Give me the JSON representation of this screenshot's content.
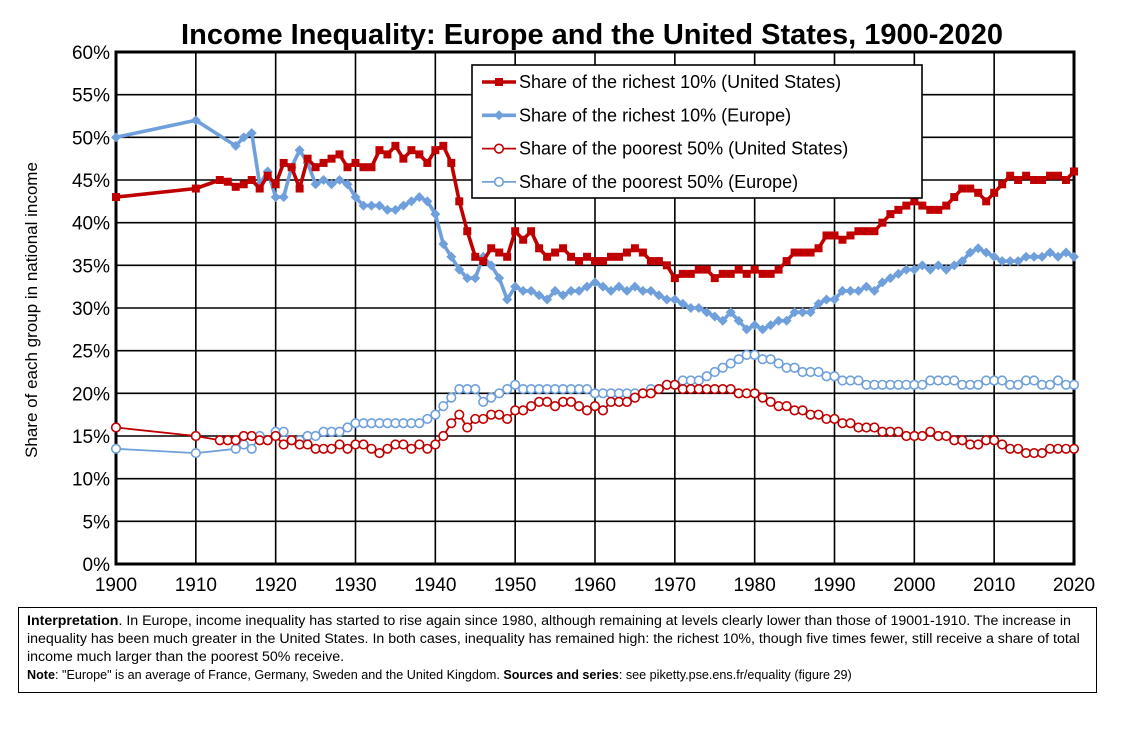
{
  "chart_data": {
    "type": "line",
    "title": "Income Inequality: Europe and the United States, 1900-2020",
    "xlabel": "",
    "ylabel": "Share of each group in national income",
    "xlim": [
      1900,
      2020
    ],
    "ylim": [
      0,
      60
    ],
    "x_ticks": [
      "1900",
      "1910",
      "1920",
      "1930",
      "1940",
      "1950",
      "1960",
      "1970",
      "1980",
      "1990",
      "2000",
      "2010",
      "2020"
    ],
    "y_ticks": [
      "0%",
      "5%",
      "10%",
      "15%",
      "20%",
      "25%",
      "30%",
      "35%",
      "40%",
      "45%",
      "50%",
      "55%",
      "60%"
    ],
    "grid": true,
    "legend_position": "top-right",
    "series": [
      {
        "name": "Share of the richest 10% (United States)",
        "color": "#c00000",
        "marker": "square",
        "filled": true,
        "x": [
          1900,
          1910,
          1913,
          1914,
          1915,
          1916,
          1917,
          1918,
          1919,
          1920,
          1921,
          1922,
          1923,
          1924,
          1925,
          1926,
          1927,
          1928,
          1929,
          1930,
          1931,
          1932,
          1933,
          1934,
          1935,
          1936,
          1937,
          1938,
          1939,
          1940,
          1941,
          1942,
          1943,
          1944,
          1945,
          1946,
          1947,
          1948,
          1949,
          1950,
          1951,
          1952,
          1953,
          1954,
          1955,
          1956,
          1957,
          1958,
          1959,
          1960,
          1961,
          1962,
          1963,
          1964,
          1965,
          1966,
          1967,
          1968,
          1969,
          1970,
          1971,
          1972,
          1973,
          1974,
          1975,
          1976,
          1977,
          1978,
          1979,
          1980,
          1981,
          1982,
          1983,
          1984,
          1985,
          1986,
          1987,
          1988,
          1989,
          1990,
          1991,
          1992,
          1993,
          1994,
          1995,
          1996,
          1997,
          1998,
          1999,
          2000,
          2001,
          2002,
          2003,
          2004,
          2005,
          2006,
          2007,
          2008,
          2009,
          2010,
          2011,
          2012,
          2013,
          2014,
          2015,
          2016,
          2017,
          2018,
          2019,
          2020
        ],
        "values": [
          43.0,
          44.0,
          45.0,
          44.8,
          44.2,
          44.5,
          45.0,
          44.0,
          45.5,
          44.5,
          47.0,
          46.5,
          44.0,
          47.5,
          46.5,
          47.0,
          47.5,
          48.0,
          46.5,
          47.0,
          46.5,
          46.5,
          48.5,
          48.0,
          49.0,
          47.5,
          48.5,
          48.0,
          47.0,
          48.5,
          49.0,
          47.0,
          42.5,
          39.0,
          36.0,
          35.5,
          37.0,
          36.5,
          36.0,
          39.0,
          38.0,
          39.0,
          37.0,
          36.0,
          36.5,
          37.0,
          36.0,
          35.5,
          36.0,
          35.5,
          35.5,
          36.0,
          36.0,
          36.5,
          37.0,
          36.5,
          35.5,
          35.5,
          35.0,
          33.5,
          34.0,
          34.0,
          34.5,
          34.5,
          33.5,
          34.0,
          34.0,
          34.5,
          34.0,
          34.5,
          34.0,
          34.0,
          34.5,
          35.5,
          36.5,
          36.5,
          36.5,
          37.0,
          38.5,
          38.5,
          38.0,
          38.5,
          39.0,
          39.0,
          39.0,
          40.0,
          41.0,
          41.5,
          42.0,
          42.5,
          42.0,
          41.5,
          41.5,
          42.0,
          43.0,
          44.0,
          44.0,
          43.5,
          42.5,
          43.5,
          44.5,
          45.5,
          45.0,
          45.5,
          45.0,
          45.0,
          45.5,
          45.5,
          45.0,
          46.0
        ]
      },
      {
        "name": "Share of the richest 10% (Europe)",
        "color": "#6fa0dc",
        "marker": "diamond",
        "filled": true,
        "x": [
          1900,
          1910,
          1915,
          1916,
          1917,
          1918,
          1919,
          1920,
          1921,
          1922,
          1923,
          1924,
          1925,
          1926,
          1927,
          1928,
          1929,
          1930,
          1931,
          1932,
          1933,
          1934,
          1935,
          1936,
          1937,
          1938,
          1939,
          1940,
          1941,
          1942,
          1943,
          1944,
          1945,
          1946,
          1947,
          1948,
          1949,
          1950,
          1951,
          1952,
          1953,
          1954,
          1955,
          1956,
          1957,
          1958,
          1959,
          1960,
          1961,
          1962,
          1963,
          1964,
          1965,
          1966,
          1967,
          1968,
          1969,
          1970,
          1971,
          1972,
          1973,
          1974,
          1975,
          1976,
          1977,
          1978,
          1979,
          1980,
          1981,
          1982,
          1983,
          1984,
          1985,
          1986,
          1987,
          1988,
          1989,
          1990,
          1991,
          1992,
          1993,
          1994,
          1995,
          1996,
          1997,
          1998,
          1999,
          2000,
          2001,
          2002,
          2003,
          2004,
          2005,
          2006,
          2007,
          2008,
          2009,
          2010,
          2011,
          2012,
          2013,
          2014,
          2015,
          2016,
          2017,
          2018,
          2019,
          2020
        ],
        "values": [
          50.0,
          52.0,
          49.0,
          50.0,
          50.5,
          44.5,
          46.0,
          43.0,
          43.0,
          46.5,
          48.5,
          47.0,
          44.5,
          45.0,
          44.5,
          45.0,
          44.5,
          43.0,
          42.0,
          42.0,
          42.0,
          41.5,
          41.5,
          42.0,
          42.5,
          43.0,
          42.5,
          41.0,
          37.5,
          36.0,
          34.5,
          33.5,
          33.5,
          36.0,
          35.0,
          33.5,
          31.0,
          32.5,
          32.0,
          32.0,
          31.5,
          31.0,
          32.0,
          31.5,
          32.0,
          32.0,
          32.5,
          33.0,
          32.5,
          32.0,
          32.5,
          32.0,
          32.5,
          32.0,
          32.0,
          31.5,
          31.0,
          31.0,
          30.5,
          30.0,
          30.0,
          29.5,
          29.0,
          28.5,
          29.5,
          28.5,
          27.5,
          28.0,
          27.5,
          28.0,
          28.5,
          28.5,
          29.5,
          29.5,
          29.5,
          30.5,
          31.0,
          31.0,
          32.0,
          32.0,
          32.0,
          32.5,
          32.0,
          33.0,
          33.5,
          34.0,
          34.5,
          34.5,
          35.0,
          34.5,
          35.0,
          34.5,
          35.0,
          35.5,
          36.5,
          37.0,
          36.5,
          36.0,
          35.5,
          35.5,
          35.5,
          36.0,
          36.0,
          36.0,
          36.5,
          36.0,
          36.5,
          36.0
        ]
      },
      {
        "name": "Share of the poorest 50% (United States)",
        "color": "#c00000",
        "marker": "circle",
        "filled": false,
        "x": [
          1900,
          1910,
          1913,
          1914,
          1915,
          1916,
          1917,
          1918,
          1919,
          1920,
          1921,
          1922,
          1923,
          1924,
          1925,
          1926,
          1927,
          1928,
          1929,
          1930,
          1931,
          1932,
          1933,
          1934,
          1935,
          1936,
          1937,
          1938,
          1939,
          1940,
          1941,
          1942,
          1943,
          1944,
          1945,
          1946,
          1947,
          1948,
          1949,
          1950,
          1951,
          1952,
          1953,
          1954,
          1955,
          1956,
          1957,
          1958,
          1959,
          1960,
          1961,
          1962,
          1963,
          1964,
          1965,
          1966,
          1967,
          1968,
          1969,
          1970,
          1971,
          1972,
          1973,
          1974,
          1975,
          1976,
          1977,
          1978,
          1979,
          1980,
          1981,
          1982,
          1983,
          1984,
          1985,
          1986,
          1987,
          1988,
          1989,
          1990,
          1991,
          1992,
          1993,
          1994,
          1995,
          1996,
          1997,
          1998,
          1999,
          2000,
          2001,
          2002,
          2003,
          2004,
          2005,
          2006,
          2007,
          2008,
          2009,
          2010,
          2011,
          2012,
          2013,
          2014,
          2015,
          2016,
          2017,
          2018,
          2019,
          2020
        ],
        "values": [
          16.0,
          15.0,
          14.5,
          14.5,
          14.5,
          15.0,
          15.0,
          14.5,
          14.5,
          15.0,
          14.0,
          14.5,
          14.0,
          14.0,
          13.5,
          13.5,
          13.5,
          14.0,
          13.5,
          14.0,
          14.0,
          13.5,
          13.0,
          13.5,
          14.0,
          14.0,
          13.5,
          14.0,
          13.5,
          14.0,
          15.0,
          16.5,
          17.5,
          16.0,
          17.0,
          17.0,
          17.5,
          17.5,
          17.0,
          18.0,
          18.0,
          18.5,
          19.0,
          19.0,
          18.5,
          19.0,
          19.0,
          18.5,
          18.0,
          18.5,
          18.0,
          19.0,
          19.0,
          19.0,
          19.5,
          20.0,
          20.0,
          20.5,
          21.0,
          21.0,
          20.5,
          20.5,
          20.5,
          20.5,
          20.5,
          20.5,
          20.5,
          20.0,
          20.0,
          20.0,
          19.5,
          19.0,
          18.5,
          18.5,
          18.0,
          18.0,
          17.5,
          17.5,
          17.0,
          17.0,
          16.5,
          16.5,
          16.0,
          16.0,
          16.0,
          15.5,
          15.5,
          15.5,
          15.0,
          15.0,
          15.0,
          15.5,
          15.0,
          15.0,
          14.5,
          14.5,
          14.0,
          14.0,
          14.5,
          14.5,
          14.0,
          13.5,
          13.5,
          13.0,
          13.0,
          13.0,
          13.5,
          13.5,
          13.5,
          13.5
        ]
      },
      {
        "name": "Share of the poorest 50% (Europe)",
        "color": "#6fa0dc",
        "marker": "circle",
        "filled": false,
        "x": [
          1900,
          1910,
          1915,
          1916,
          1917,
          1918,
          1919,
          1920,
          1921,
          1922,
          1923,
          1924,
          1925,
          1926,
          1927,
          1928,
          1929,
          1930,
          1931,
          1932,
          1933,
          1934,
          1935,
          1936,
          1937,
          1938,
          1939,
          1940,
          1941,
          1942,
          1943,
          1944,
          1945,
          1946,
          1947,
          1948,
          1949,
          1950,
          1951,
          1952,
          1953,
          1954,
          1955,
          1956,
          1957,
          1958,
          1959,
          1960,
          1961,
          1962,
          1963,
          1964,
          1965,
          1966,
          1967,
          1968,
          1969,
          1970,
          1971,
          1972,
          1973,
          1974,
          1975,
          1976,
          1977,
          1978,
          1979,
          1980,
          1981,
          1982,
          1983,
          1984,
          1985,
          1986,
          1987,
          1988,
          1989,
          1990,
          1991,
          1992,
          1993,
          1994,
          1995,
          1996,
          1997,
          1998,
          1999,
          2000,
          2001,
          2002,
          2003,
          2004,
          2005,
          2006,
          2007,
          2008,
          2009,
          2010,
          2011,
          2012,
          2013,
          2014,
          2015,
          2016,
          2017,
          2018,
          2019,
          2020
        ],
        "values": [
          13.5,
          13.0,
          13.5,
          14.0,
          13.5,
          15.0,
          14.5,
          15.5,
          15.5,
          14.5,
          14.5,
          15.0,
          15.0,
          15.5,
          15.5,
          15.5,
          16.0,
          16.5,
          16.5,
          16.5,
          16.5,
          16.5,
          16.5,
          16.5,
          16.5,
          16.5,
          17.0,
          17.5,
          18.5,
          19.5,
          20.5,
          20.5,
          20.5,
          19.0,
          19.5,
          20.0,
          20.5,
          21.0,
          20.5,
          20.5,
          20.5,
          20.5,
          20.5,
          20.5,
          20.5,
          20.5,
          20.5,
          20.0,
          20.0,
          20.0,
          20.0,
          20.0,
          20.0,
          20.0,
          20.5,
          20.5,
          21.0,
          21.0,
          21.5,
          21.5,
          21.5,
          22.0,
          22.5,
          23.0,
          23.5,
          24.0,
          24.5,
          24.5,
          24.0,
          24.0,
          23.5,
          23.0,
          23.0,
          22.5,
          22.5,
          22.5,
          22.0,
          22.0,
          21.5,
          21.5,
          21.5,
          21.0,
          21.0,
          21.0,
          21.0,
          21.0,
          21.0,
          21.0,
          21.0,
          21.5,
          21.5,
          21.5,
          21.5,
          21.0,
          21.0,
          21.0,
          21.5,
          21.5,
          21.5,
          21.0,
          21.0,
          21.5,
          21.5,
          21.0,
          21.0,
          21.5,
          21.0,
          21.0
        ]
      }
    ]
  },
  "notes": {
    "interpretation_label": "Interpretation",
    "interpretation_text": ". In Europe, income inequality has started to rise again since 1980, although remaining at levels clearly lower than those of 19001-1910. The increase in inequality has been much greater in the United States. In both cases, inequality has remained high: the richest 10%, though five times fewer, still receive a share of total income much larger than the poorest 50% receive.",
    "note_label": "Note",
    "note_text": ": \"Europe\" is an average of France, Germany, Sweden and the United Kingdom. ",
    "sources_label": "Sources and series",
    "sources_text": ": see piketty.pse.ens.fr/equality (figure 29)"
  }
}
